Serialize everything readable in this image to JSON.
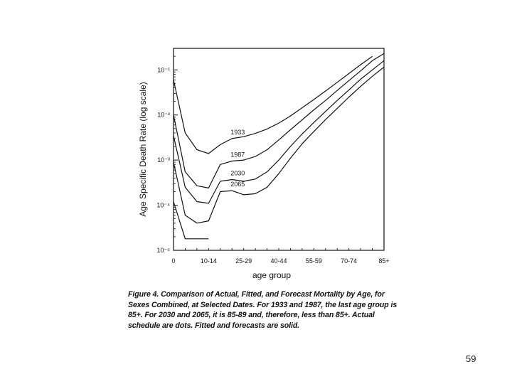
{
  "chart_data": {
    "type": "line",
    "title": "",
    "xlabel": "age group",
    "ylabel": "Age Specific Death Rate (log scale)",
    "y_scale": "log",
    "ylim": [
      1e-05,
      0.3
    ],
    "grid": false,
    "x_tick_labels": [
      "0",
      "10-14",
      "25-29",
      "40-44",
      "55-59",
      "70-74",
      "85+"
    ],
    "y_tick_labels": [
      "10⁻⁵",
      "10⁻⁴",
      "10⁻³",
      "10⁻²",
      "10⁻¹"
    ],
    "x": [
      0,
      1,
      2,
      3,
      4,
      5,
      6,
      7,
      8,
      9,
      10,
      11,
      12,
      13,
      14,
      15,
      16,
      17,
      18
    ],
    "series": [
      {
        "name": "1933",
        "values": [
          0.06,
          0.004,
          0.0017,
          0.0014,
          0.0022,
          0.003,
          0.0033,
          0.0039,
          0.0049,
          0.0066,
          0.0095,
          0.0145,
          0.022,
          0.034,
          0.053,
          0.083,
          0.13,
          0.2,
          null
        ]
      },
      {
        "name": "1987",
        "values": [
          0.01,
          0.00055,
          0.00027,
          0.00024,
          0.0008,
          0.00095,
          0.001,
          0.0012,
          0.0017,
          0.0028,
          0.0047,
          0.0078,
          0.013,
          0.021,
          0.035,
          0.058,
          0.095,
          0.16,
          0.23
        ]
      },
      {
        "name": "2030",
        "values": [
          0.0035,
          0.00025,
          0.00012,
          0.00011,
          0.00034,
          0.00037,
          0.00034,
          0.00038,
          0.00055,
          0.001,
          0.002,
          0.0038,
          0.0068,
          0.012,
          0.021,
          0.036,
          0.062,
          0.1,
          0.16
        ]
      },
      {
        "name": "2065",
        "values": [
          0.0009,
          6e-05,
          4e-05,
          4.5e-05,
          0.0002,
          0.00021,
          0.00017,
          0.00018,
          0.00025,
          0.0005,
          0.0011,
          0.0023,
          0.0043,
          0.0079,
          0.014,
          0.025,
          0.043,
          0.072,
          0.115
        ]
      },
      {
        "name": "",
        "values": [
          0.00012,
          1.8e-05,
          1.8e-05,
          1.8e-05,
          null,
          null,
          null,
          null,
          null,
          null,
          null,
          null,
          null,
          null,
          null,
          null,
          null,
          null,
          null
        ]
      }
    ]
  },
  "caption": "Figure 4. Comparison of Actual, Fitted, and Forecast Mortality by Age, for Sexes Combined, at Selected Dates. For 1933 and 1987, the last age group is 85+. For 2030 and 2065, it is 85-89 and, therefore, less than 85+. Actual schedule are dots. Fitted and forecasts are solid.",
  "page_number": "59"
}
